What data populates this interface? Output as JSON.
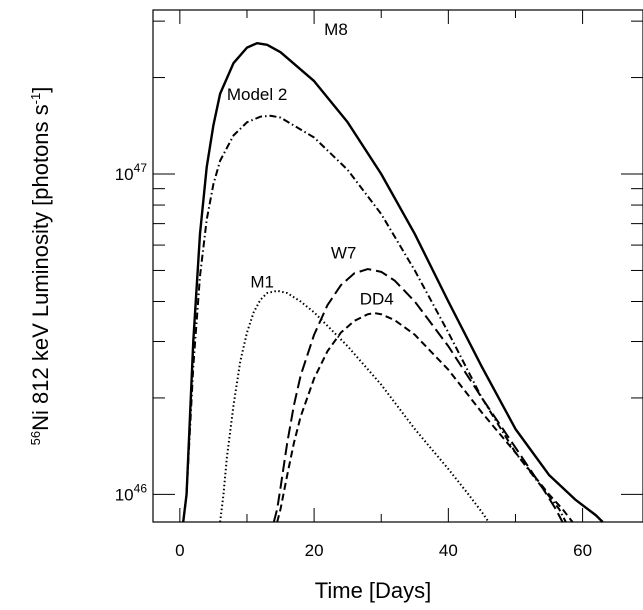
{
  "chart_data": {
    "type": "line",
    "title": "",
    "xlabel": "Time [Days]",
    "ylabel_parts": {
      "superscript_prefix": "56",
      "main": "Ni 812 keV Luminosity [photons s",
      "exponent": "-1",
      "suffix": "]"
    },
    "y_scale": "log",
    "xlim": [
      -4,
      69
    ],
    "ylim": [
      8.2e+45,
      3.25e+47
    ],
    "x_ticks": [
      {
        "value": 0,
        "label": "0"
      },
      {
        "value": 20,
        "label": "20"
      },
      {
        "value": 40,
        "label": "40"
      },
      {
        "value": 60,
        "label": "60"
      }
    ],
    "y_ticks_labeled": [
      {
        "value": 1e+46,
        "base": "10",
        "exp": "46"
      },
      {
        "value": 1e+47,
        "base": "10",
        "exp": "47"
      }
    ],
    "grid": false,
    "legend": "none (curves labeled inline)",
    "series": [
      {
        "name": "M8",
        "dash": "solid",
        "label_at": {
          "x": 21.5,
          "y": 2.72e+47
        },
        "points": [
          [
            0.5,
            8.2e+45
          ],
          [
            1,
            1e+46
          ],
          [
            2,
            3e+46
          ],
          [
            3,
            6.5e+46
          ],
          [
            4,
            1.05e+47
          ],
          [
            5,
            1.42e+47
          ],
          [
            6,
            1.78e+47
          ],
          [
            8,
            2.22e+47
          ],
          [
            10,
            2.48e+47
          ],
          [
            11.5,
            2.56e+47
          ],
          [
            13,
            2.53e+47
          ],
          [
            15,
            2.4e+47
          ],
          [
            20,
            1.95e+47
          ],
          [
            25,
            1.45e+47
          ],
          [
            30,
            1e+47
          ],
          [
            35,
            6.5e+46
          ],
          [
            40,
            4e+46
          ],
          [
            45,
            2.5e+46
          ],
          [
            50,
            1.6e+46
          ],
          [
            55,
            1.15e+46
          ],
          [
            59,
            9.6e+45
          ],
          [
            62,
            8.6e+45
          ],
          [
            63,
            8.2e+45
          ]
        ]
      },
      {
        "name": "Model 2",
        "dash": "dashdot",
        "label_at": {
          "x": 7,
          "y": 1.7e+47
        },
        "points": [
          [
            0.5,
            8.2e+45
          ],
          [
            1,
            1e+46
          ],
          [
            2,
            2.5e+46
          ],
          [
            3,
            4.8e+46
          ],
          [
            4,
            7.2e+46
          ],
          [
            5,
            9.3e+46
          ],
          [
            6,
            1.1e+47
          ],
          [
            8,
            1.32e+47
          ],
          [
            10,
            1.45e+47
          ],
          [
            12,
            1.51e+47
          ],
          [
            13.5,
            1.52e+47
          ],
          [
            15,
            1.5e+47
          ],
          [
            20,
            1.3e+47
          ],
          [
            25,
            1.03e+47
          ],
          [
            30,
            7.5e+46
          ],
          [
            35,
            5e+46
          ],
          [
            40,
            3.2e+46
          ],
          [
            45,
            2e+46
          ],
          [
            50,
            1.35e+46
          ],
          [
            54,
            1.05e+46
          ],
          [
            56.5,
            9e+45
          ],
          [
            57.5,
            8.2e+45
          ]
        ]
      },
      {
        "name": "M1",
        "dash": "dotted",
        "label_at": {
          "x": 10.5,
          "y": 4.42e+46
        },
        "points": [
          [
            6,
            8.2e+45
          ],
          [
            6.5,
            1e+46
          ],
          [
            7,
            1.3e+46
          ],
          [
            8,
            1.9e+46
          ],
          [
            9,
            2.6e+46
          ],
          [
            10,
            3.2e+46
          ],
          [
            11,
            3.7e+46
          ],
          [
            12,
            4.05e+46
          ],
          [
            13,
            4.25e+46
          ],
          [
            14.5,
            4.32e+46
          ],
          [
            16,
            4.25e+46
          ],
          [
            18,
            4e+46
          ],
          [
            20,
            3.7e+46
          ],
          [
            25,
            2.9e+46
          ],
          [
            30,
            2.2e+46
          ],
          [
            35,
            1.6e+46
          ],
          [
            40,
            1.2e+46
          ],
          [
            43,
            1e+46
          ],
          [
            45,
            8.8e+45
          ],
          [
            46,
            8.2e+45
          ]
        ]
      },
      {
        "name": "W7",
        "dash": "longdash",
        "label_at": {
          "x": 22.5,
          "y": 5.45e+46
        },
        "points": [
          [
            14,
            8.2e+45
          ],
          [
            14.5,
            9e+45
          ],
          [
            15,
            1.05e+46
          ],
          [
            16,
            1.45e+46
          ],
          [
            17,
            1.9e+46
          ],
          [
            18,
            2.35e+46
          ],
          [
            20,
            3.15e+46
          ],
          [
            22,
            3.9e+46
          ],
          [
            24,
            4.5e+46
          ],
          [
            26,
            4.9e+46
          ],
          [
            28,
            5.05e+46
          ],
          [
            30,
            4.95e+46
          ],
          [
            32,
            4.65e+46
          ],
          [
            35,
            4e+46
          ],
          [
            40,
            2.9e+46
          ],
          [
            45,
            2e+46
          ],
          [
            50,
            1.4e+46
          ],
          [
            54,
            1.05e+46
          ],
          [
            56,
            9e+45
          ],
          [
            57,
            8.2e+45
          ]
        ]
      },
      {
        "name": "DD4",
        "dash": "dashed",
        "label_at": {
          "x": 26.8,
          "y": 3.92e+46
        },
        "points": [
          [
            14.5,
            8.2e+45
          ],
          [
            15,
            9e+45
          ],
          [
            16,
            1.15e+46
          ],
          [
            17,
            1.45e+46
          ],
          [
            18,
            1.75e+46
          ],
          [
            20,
            2.3e+46
          ],
          [
            22,
            2.8e+46
          ],
          [
            24,
            3.2e+46
          ],
          [
            26,
            3.48e+46
          ],
          [
            28,
            3.65e+46
          ],
          [
            29,
            3.68e+46
          ],
          [
            30,
            3.65e+46
          ],
          [
            32,
            3.5e+46
          ],
          [
            35,
            3.15e+46
          ],
          [
            40,
            2.45e+46
          ],
          [
            45,
            1.8e+46
          ],
          [
            50,
            1.35e+46
          ],
          [
            55,
            1e+46
          ],
          [
            57,
            9e+45
          ],
          [
            58.5,
            8.2e+45
          ]
        ]
      }
    ]
  }
}
